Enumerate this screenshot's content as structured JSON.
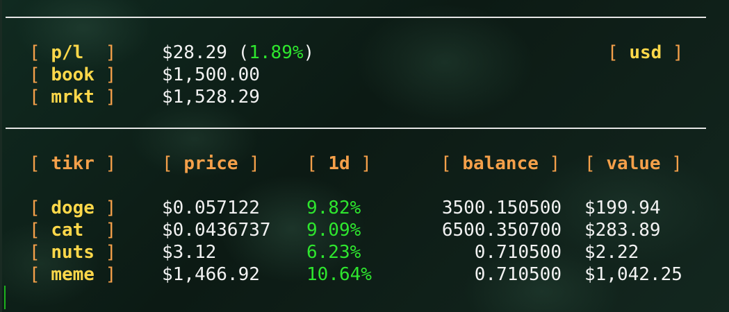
{
  "summary": {
    "pl_label": "p/l",
    "pl_value": "$28.29",
    "pl_pct": "1.89%",
    "book_label": "book",
    "book_value": "$1,500.00",
    "mrkt_label": "mrkt",
    "mrkt_value": "$1,528.29",
    "currency": "usd"
  },
  "table": {
    "headers": {
      "tikr": "tikr",
      "price": "price",
      "change": "1d",
      "balance": "balance",
      "value": "value"
    },
    "rows": [
      {
        "tikr": "doge",
        "price": "$0.057122",
        "change": "9.82%",
        "balance": "3500.150500",
        "value": "$199.94"
      },
      {
        "tikr": "cat",
        "price": "$0.0436737",
        "change": "9.09%",
        "balance": "6500.350700",
        "value": "$283.89"
      },
      {
        "tikr": "nuts",
        "price": "$3.12",
        "change": "6.23%",
        "balance": "0.710500",
        "value": "$2.22"
      },
      {
        "tikr": "meme",
        "price": "$1,466.92",
        "change": "10.64%",
        "balance": "0.710500",
        "value": "$1,042.25"
      }
    ]
  },
  "colors": {
    "bracket": "#f5a04a",
    "label": "#ffd84a",
    "positive": "#2ee62e",
    "text": "#f2f2f2"
  }
}
